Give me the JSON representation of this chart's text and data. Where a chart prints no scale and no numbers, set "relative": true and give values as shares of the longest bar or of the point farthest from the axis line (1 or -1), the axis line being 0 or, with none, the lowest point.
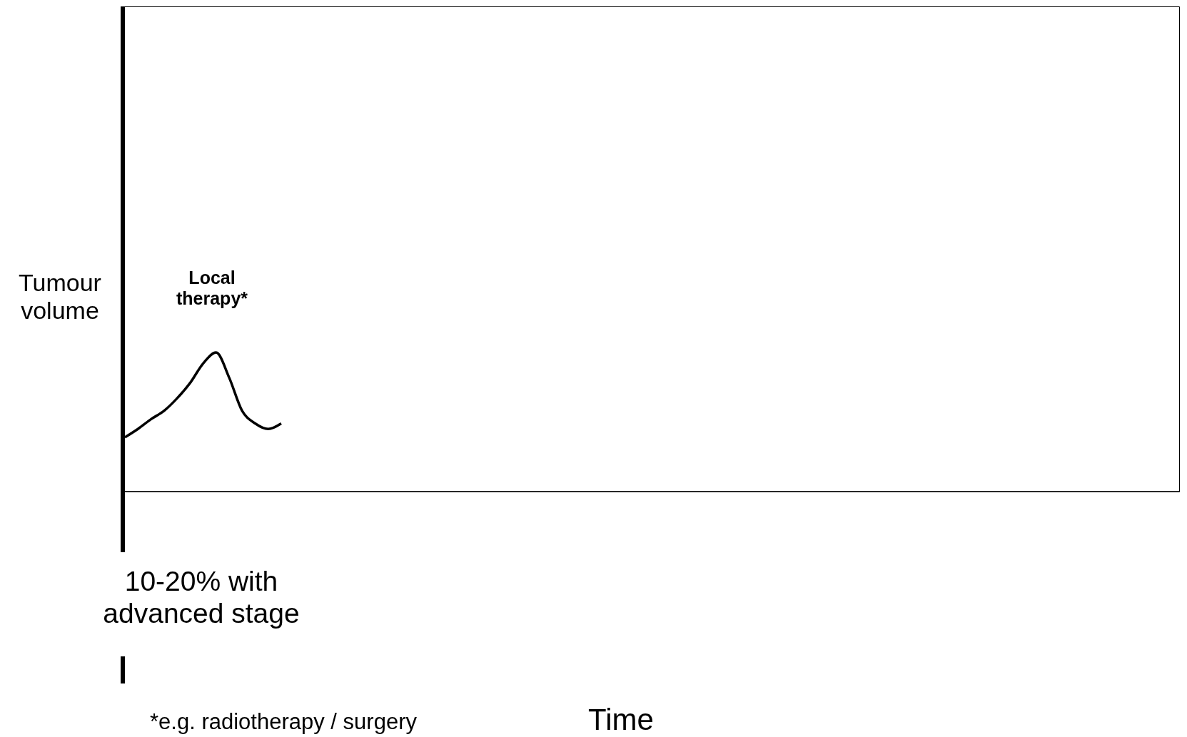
{
  "chart_data": {
    "type": "line",
    "relative": true,
    "ylabel": "Tumour volume",
    "categories": [
      null,
      null,
      null,
      null,
      null,
      null,
      null,
      null,
      null,
      null,
      null,
      null,
      null
    ],
    "series": [
      {
        "color": "#000000",
        "values": [
          0.39,
          0.45,
          0.52,
          0.58,
          0.67,
          0.78,
          0.92,
          1.0,
          0.82,
          0.58,
          0.49,
          0.45,
          0.49
        ]
      }
    ],
    "annotations": [
      "Local therapy*",
      "10-20% with advanced stage",
      "*e.g. radiotherapy / surgery",
      "Time"
    ]
  }
}
